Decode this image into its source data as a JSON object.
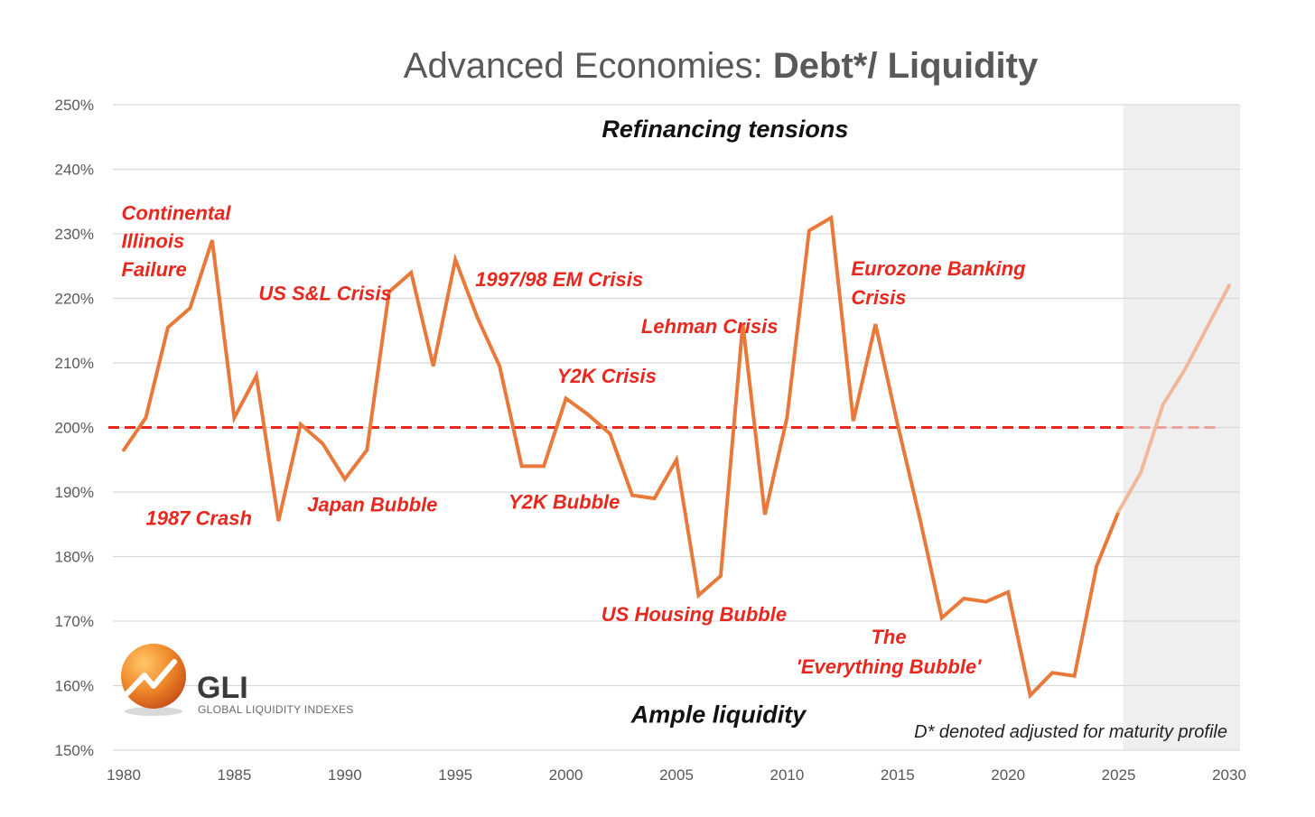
{
  "chart_data": {
    "type": "line",
    "title_normal": "Advanced Economies: ",
    "title_bold": "Debt*/ Liquidity",
    "xlabel": "",
    "ylabel": "",
    "xlim": [
      1980,
      2030
    ],
    "ylim": [
      150,
      250
    ],
    "x_ticks": [
      1980,
      1985,
      1990,
      1995,
      2000,
      2005,
      2010,
      2015,
      2020,
      2025,
      2030
    ],
    "x_tick_labels": [
      "1980",
      "1985",
      "1990",
      "1995",
      "2000",
      "2005",
      "2010",
      "2015",
      "2020",
      "2025",
      "2030"
    ],
    "y_ticks": [
      150,
      160,
      170,
      180,
      190,
      200,
      210,
      220,
      230,
      240,
      250
    ],
    "y_tick_labels": [
      "150%",
      "160%",
      "170%",
      "180%",
      "190%",
      "200%",
      "210%",
      "220%",
      "230%",
      "240%",
      "250%"
    ],
    "grid": "horizontal",
    "reference_line": {
      "y": 200,
      "style": "dashed",
      "color": "#e8281e"
    },
    "forecast_shade": {
      "x_from": 2025.2,
      "x_to": 2030.5,
      "color": "#efefef"
    },
    "series": [
      {
        "color": "#e8793a",
        "x": [
          1980,
          1981,
          1982,
          1983,
          1984,
          1985,
          1986,
          1987,
          1988,
          1989,
          1990,
          1991,
          1992,
          1993,
          1994,
          1995,
          1996,
          1997,
          1998,
          1999,
          2000,
          2001,
          2002,
          2003,
          2004,
          2005,
          2006,
          2007,
          2008,
          2009,
          2010,
          2011,
          2012,
          2013,
          2014,
          2015,
          2016,
          2017,
          2018,
          2019,
          2020,
          2021,
          2022,
          2023,
          2024,
          2025
        ],
        "y": [
          196.5,
          201.5,
          215.5,
          218.5,
          229,
          201.5,
          208,
          185.5,
          200.5,
          197.5,
          192,
          196.5,
          221,
          224,
          209.5,
          226,
          217,
          209.5,
          194,
          194,
          204.5,
          202,
          199,
          189.5,
          189,
          195,
          174,
          177,
          216,
          186.5,
          201.5,
          230.5,
          232.5,
          201,
          216,
          200.5,
          186,
          170.5,
          173.5,
          173,
          174.5,
          158.5,
          162,
          161.5,
          178.5,
          187
        ]
      },
      {
        "forecast": true,
        "color": "#f0b898",
        "x": [
          2025,
          2026,
          2027,
          2028,
          2029,
          2030
        ],
        "y": [
          187,
          193,
          203.5,
          209,
          215.5,
          222
        ]
      }
    ],
    "annotations": [
      {
        "text": "Continental",
        "x": 1979.9,
        "y": 232.2
      },
      {
        "text": "Illinois",
        "x": 1979.9,
        "y": 227.8
      },
      {
        "text": "Failure",
        "x": 1979.9,
        "y": 223.4
      },
      {
        "text": "US S&L Crisis",
        "x": 1986.1,
        "y": 219.7
      },
      {
        "text": "1997/98 EM Crisis",
        "x": 1995.9,
        "y": 221.9
      },
      {
        "text": "Lehman Crisis",
        "x": 2003.4,
        "y": 214.6
      },
      {
        "text": "Eurozone Banking",
        "x": 2012.9,
        "y": 223.6
      },
      {
        "text": "Crisis",
        "x": 2012.9,
        "y": 219.1
      },
      {
        "text": "Y2K Crisis",
        "x": 1999.6,
        "y": 206.9
      },
      {
        "text": "1987 Crash",
        "x": 1981.0,
        "y": 184.9
      },
      {
        "text": "Japan Bubble",
        "x": 1988.3,
        "y": 187.0
      },
      {
        "text": "Y2K Bubble",
        "x": 1997.4,
        "y": 187.4
      },
      {
        "text": "US Housing Bubble",
        "x": 2001.6,
        "y": 170.0
      },
      {
        "text": "The",
        "x": 2014.6,
        "y": 166.5,
        "anchor": "middle"
      },
      {
        "text": "'Everything Bubble'",
        "x": 2014.6,
        "y": 161.9,
        "anchor": "middle"
      }
    ],
    "region_labels": [
      {
        "text": "Refinancing tensions",
        "x": 2007.2,
        "y": 245.0
      },
      {
        "text": "Ample liquidity",
        "x": 2006.9,
        "y": 154.3
      }
    ],
    "footnote": "D* denoted adjusted for maturity profile",
    "logo": {
      "main": "GLI",
      "sub": "GLOBAL LIQUIDITY INDEXES"
    }
  }
}
